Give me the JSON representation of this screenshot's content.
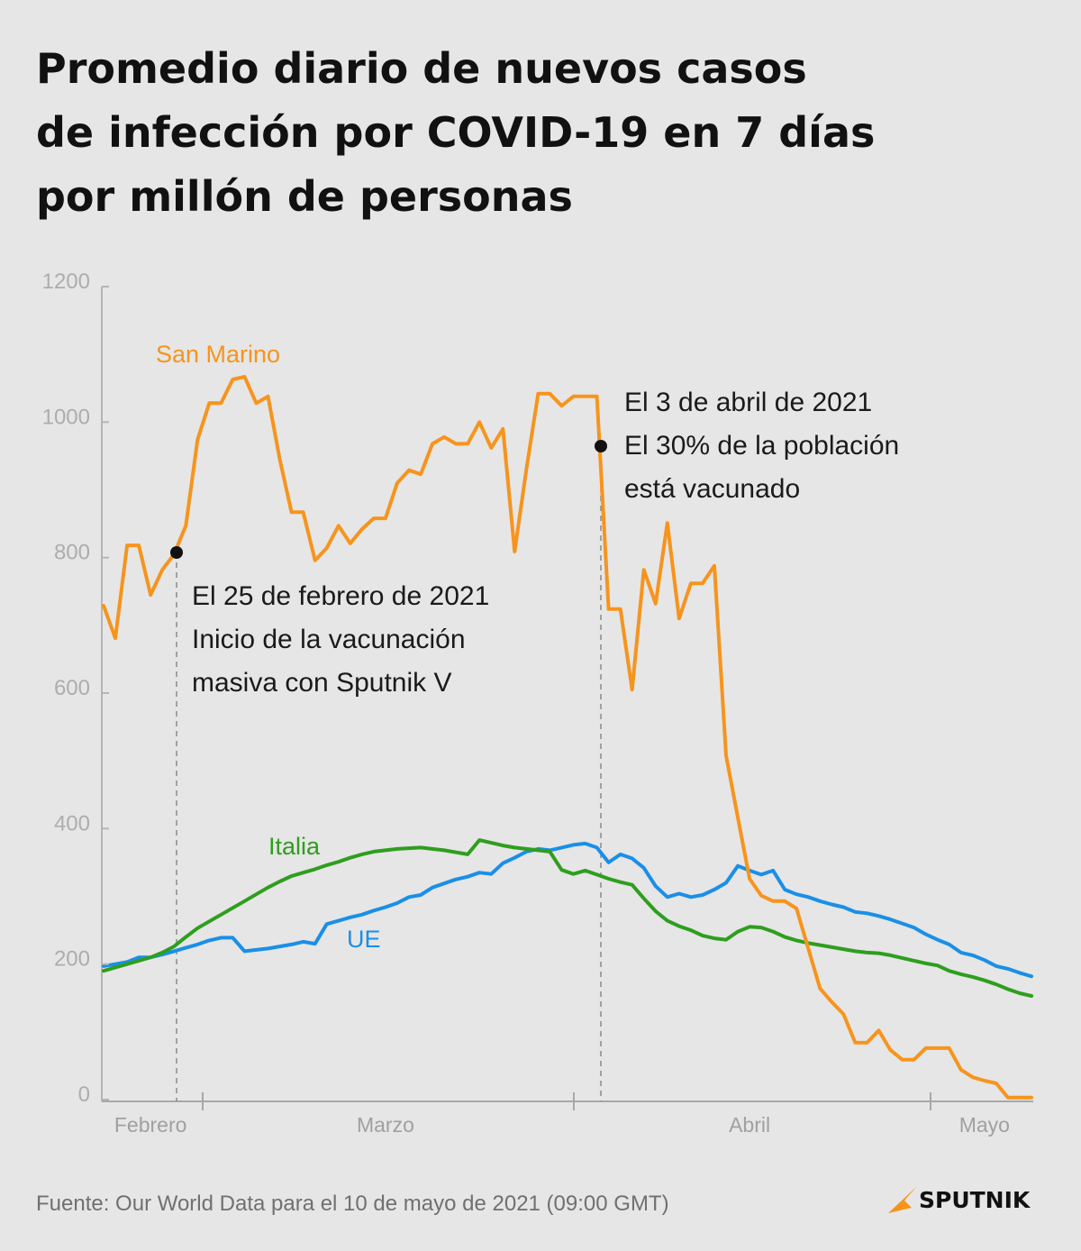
{
  "chart_data": {
    "type": "line",
    "title": [
      "Promedio diario de nuevos casos",
      "de infección por COVID-19 en 7 días",
      "por millón de personas"
    ],
    "categories": [
      null,
      null,
      null,
      null,
      "Febrero",
      null,
      null,
      null,
      null,
      null,
      null,
      null,
      null,
      null,
      null,
      null,
      null,
      null,
      null,
      null,
      null,
      null,
      null,
      null,
      "Marzo",
      null,
      null,
      null,
      null,
      null,
      null,
      null,
      null,
      null,
      null,
      null,
      null,
      null,
      null,
      null,
      null,
      null,
      null,
      null,
      null,
      null,
      null,
      null,
      null,
      null,
      null,
      null,
      null,
      null,
      null,
      "Abril",
      null,
      null,
      null,
      null,
      null,
      null,
      null,
      null,
      null,
      null,
      null,
      null,
      null,
      null,
      null,
      null,
      null,
      null,
      null,
      "Mayo",
      null,
      null,
      null,
      null
    ],
    "ylim": [
      0,
      1200
    ],
    "yticks": [
      0,
      200,
      400,
      600,
      800,
      1000,
      1200
    ],
    "series": [
      {
        "name": "San Marino",
        "color": "#f7941d",
        "values": [
          729,
          681,
          818,
          818,
          745,
          782,
          805,
          847,
          974,
          1028,
          1028,
          1063,
          1067,
          1028,
          1038,
          945,
          867,
          867,
          796,
          814,
          847,
          821,
          842,
          858,
          858,
          910,
          929,
          923,
          968,
          978,
          968,
          968,
          1000,
          962,
          990,
          809,
          931,
          1042,
          1042,
          1024,
          1038,
          1038,
          1038,
          724,
          724,
          605,
          782,
          732,
          851,
          710,
          762,
          762,
          788,
          508,
          416,
          326,
          301,
          293,
          293,
          282,
          223,
          164,
          144,
          126,
          84,
          84,
          102,
          73,
          59,
          59,
          76,
          76,
          76,
          44,
          33,
          28,
          24,
          3,
          3,
          3
        ]
      },
      {
        "name": "Italia",
        "color": "#2e9e1e",
        "values": [
          190,
          195,
          200,
          205,
          210,
          217,
          226,
          240,
          253,
          263,
          273,
          283,
          293,
          303,
          313,
          322,
          330,
          335,
          340,
          346,
          351,
          357,
          362,
          366,
          368,
          370,
          371,
          372,
          370,
          368,
          365,
          362,
          383,
          379,
          375,
          372,
          370,
          368,
          366,
          339,
          333,
          338,
          332,
          326,
          321,
          317,
          297,
          278,
          264,
          256,
          250,
          242,
          238,
          236,
          248,
          255,
          254,
          248,
          240,
          235,
          231,
          228,
          225,
          222,
          219,
          217,
          216,
          213,
          209,
          205,
          201,
          198,
          190,
          185,
          181,
          176,
          170,
          163,
          157,
          153
        ]
      },
      {
        "name": "UE",
        "color": "#1a8fe8",
        "values": [
          197,
          200,
          203,
          210,
          210,
          214,
          219,
          224,
          229,
          235,
          239,
          239,
          219,
          221,
          223,
          226,
          229,
          233,
          230,
          259,
          264,
          269,
          273,
          279,
          284,
          290,
          299,
          302,
          313,
          319,
          325,
          329,
          335,
          333,
          349,
          357,
          366,
          370,
          368,
          372,
          376,
          378,
          372,
          350,
          362,
          356,
          342,
          315,
          299,
          304,
          299,
          302,
          310,
          320,
          345,
          338,
          332,
          338,
          310,
          303,
          299,
          293,
          288,
          284,
          277,
          275,
          271,
          266,
          260,
          254,
          244,
          236,
          229,
          217,
          213,
          206,
          197,
          193,
          187,
          182
        ]
      }
    ],
    "annotations": [
      {
        "lines": [
          "El 25 de febrero de 2021",
          "Inicio de la vacunación",
          "masiva con Sputnik V"
        ]
      },
      {
        "lines": [
          "El 3 de abril de 2021",
          "El 30% de la población",
          "está vacunado"
        ]
      }
    ]
  },
  "source": "Fuente: Our World Data para el 10 de mayo de 2021 (09:00 GMT)",
  "brand": "SPUTNIK"
}
